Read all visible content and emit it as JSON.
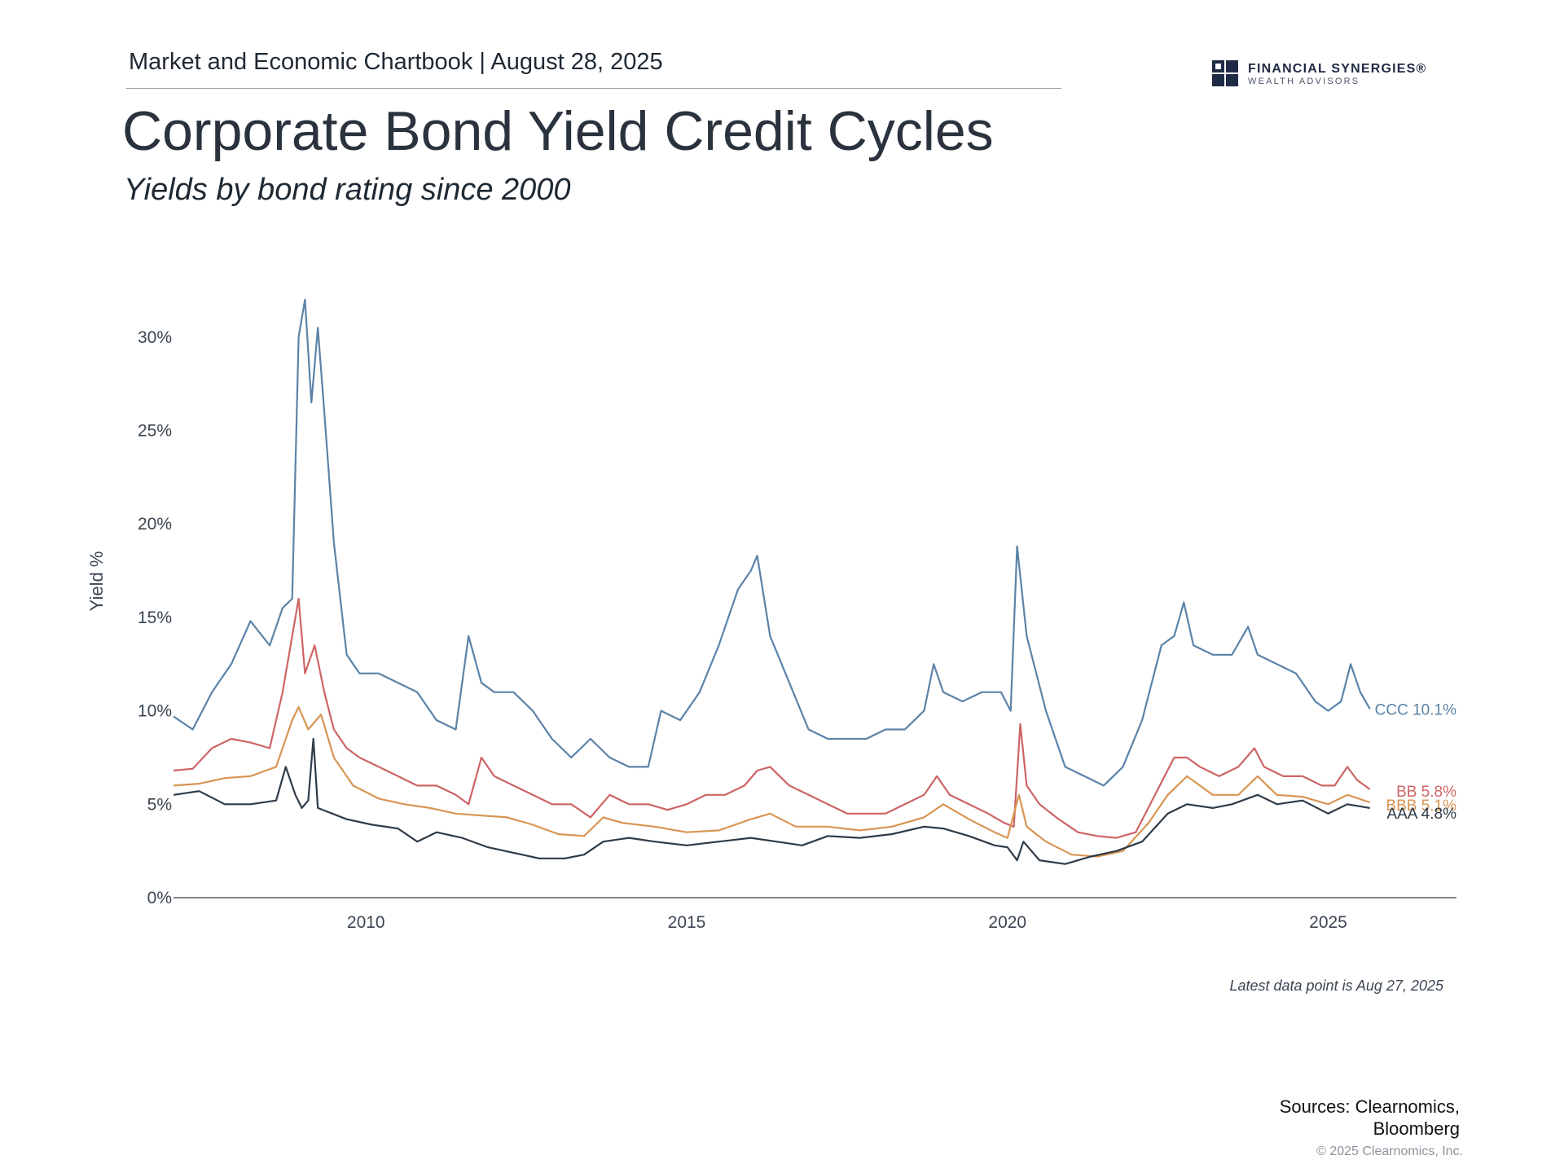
{
  "header": {
    "chartbook": "Market and Economic Chartbook | August 28, 2025"
  },
  "logo": {
    "line1": "FINANCIAL SYNERGIES®",
    "line2": "WEALTH ADVISORS",
    "colors": {
      "navy": "#1f2a44"
    }
  },
  "title": "Corporate Bond Yield Credit Cycles",
  "subtitle": "Yields by bond rating since 2000",
  "note": "Latest data point is Aug 27, 2025",
  "sources": {
    "line1": "Sources: Clearnomics,",
    "line2": "Bloomberg"
  },
  "copyright": "© 2025 Clearnomics, Inc.",
  "chart_data": {
    "type": "line",
    "ylabel": "Yield %",
    "xlabel": "",
    "ylim": [
      0,
      33
    ],
    "yticks": [
      0,
      5,
      10,
      15,
      20,
      25,
      30
    ],
    "ytick_labels": [
      "0%",
      "5%",
      "10%",
      "15%",
      "20%",
      "25%",
      "30%"
    ],
    "xlim": [
      2007.0,
      2027.0
    ],
    "xticks": [
      2010,
      2015,
      2020,
      2025
    ],
    "xtick_labels": [
      "2010",
      "2015",
      "2020",
      "2025"
    ],
    "grid": false,
    "legend": "end-of-line labels",
    "series": [
      {
        "name": "CCC",
        "end_label": "CCC 10.1%",
        "color": "#5b83a8",
        "x": [
          2007.0,
          2007.3,
          2007.6,
          2007.9,
          2008.2,
          2008.5,
          2008.7,
          2008.85,
          2008.95,
          2009.05,
          2009.15,
          2009.25,
          2009.35,
          2009.5,
          2009.7,
          2009.9,
          2010.2,
          2010.5,
          2010.8,
          2011.1,
          2011.4,
          2011.6,
          2011.8,
          2012.0,
          2012.3,
          2012.6,
          2012.9,
          2013.2,
          2013.5,
          2013.8,
          2014.1,
          2014.4,
          2014.6,
          2014.9,
          2015.2,
          2015.5,
          2015.8,
          2016.0,
          2016.1,
          2016.3,
          2016.6,
          2016.9,
          2017.2,
          2017.5,
          2017.8,
          2018.1,
          2018.4,
          2018.7,
          2018.85,
          2019.0,
          2019.3,
          2019.6,
          2019.9,
          2020.05,
          2020.15,
          2020.3,
          2020.6,
          2020.9,
          2021.2,
          2021.5,
          2021.8,
          2022.1,
          2022.4,
          2022.6,
          2022.75,
          2022.9,
          2023.2,
          2023.5,
          2023.75,
          2023.9,
          2024.2,
          2024.5,
          2024.8,
          2025.0,
          2025.2,
          2025.35,
          2025.5,
          2025.65
        ],
        "y": [
          9.7,
          9.0,
          11.0,
          12.5,
          14.8,
          13.5,
          15.5,
          16.0,
          30.0,
          32.0,
          26.5,
          30.5,
          26.0,
          19.0,
          13.0,
          12.0,
          12.0,
          11.5,
          11.0,
          9.5,
          9.0,
          14.0,
          11.5,
          11.0,
          11.0,
          10.0,
          8.5,
          7.5,
          8.5,
          7.5,
          7.0,
          7.0,
          10.0,
          9.5,
          11.0,
          13.5,
          16.5,
          17.5,
          18.3,
          14.0,
          11.5,
          9.0,
          8.5,
          8.5,
          8.5,
          9.0,
          9.0,
          10.0,
          12.5,
          11.0,
          10.5,
          11.0,
          11.0,
          10.0,
          18.8,
          14.0,
          10.0,
          7.0,
          6.5,
          6.0,
          7.0,
          9.5,
          13.5,
          14.0,
          15.8,
          13.5,
          13.0,
          13.0,
          14.5,
          13.0,
          12.5,
          12.0,
          10.5,
          10.0,
          10.5,
          12.5,
          11.0,
          10.1
        ]
      },
      {
        "name": "BB",
        "end_label": "BB 5.8%",
        "color": "#cd6466",
        "x": [
          2007.0,
          2007.3,
          2007.6,
          2007.9,
          2008.2,
          2008.5,
          2008.7,
          2008.85,
          2008.95,
          2009.05,
          2009.2,
          2009.35,
          2009.5,
          2009.7,
          2009.9,
          2010.2,
          2010.5,
          2010.8,
          2011.1,
          2011.4,
          2011.6,
          2011.8,
          2012.0,
          2012.3,
          2012.6,
          2012.9,
          2013.2,
          2013.5,
          2013.8,
          2014.1,
          2014.4,
          2014.7,
          2015.0,
          2015.3,
          2015.6,
          2015.9,
          2016.1,
          2016.3,
          2016.6,
          2016.9,
          2017.2,
          2017.5,
          2017.8,
          2018.1,
          2018.4,
          2018.7,
          2018.9,
          2019.1,
          2019.4,
          2019.7,
          2019.95,
          2020.1,
          2020.2,
          2020.3,
          2020.5,
          2020.8,
          2021.1,
          2021.4,
          2021.7,
          2022.0,
          2022.3,
          2022.6,
          2022.8,
          2023.0,
          2023.3,
          2023.6,
          2023.85,
          2024.0,
          2024.3,
          2024.6,
          2024.9,
          2025.1,
          2025.3,
          2025.45,
          2025.65
        ],
        "y": [
          6.8,
          6.9,
          8.0,
          8.5,
          8.3,
          8.0,
          11.0,
          14.0,
          16.0,
          12.0,
          13.5,
          11.0,
          9.0,
          8.0,
          7.5,
          7.0,
          6.5,
          6.0,
          6.0,
          5.5,
          5.0,
          7.5,
          6.5,
          6.0,
          5.5,
          5.0,
          5.0,
          4.3,
          5.5,
          5.0,
          5.0,
          4.7,
          5.0,
          5.5,
          5.5,
          6.0,
          6.8,
          7.0,
          6.0,
          5.5,
          5.0,
          4.5,
          4.5,
          4.5,
          5.0,
          5.5,
          6.5,
          5.5,
          5.0,
          4.5,
          4.0,
          3.8,
          9.3,
          6.0,
          5.0,
          4.2,
          3.5,
          3.3,
          3.2,
          3.5,
          5.5,
          7.5,
          7.5,
          7.0,
          6.5,
          7.0,
          8.0,
          7.0,
          6.5,
          6.5,
          6.0,
          6.0,
          7.0,
          6.3,
          5.8
        ]
      },
      {
        "name": "BBB",
        "end_label": "BBB 5.1%",
        "color": "#d89553",
        "x": [
          2007.0,
          2007.4,
          2007.8,
          2008.2,
          2008.6,
          2008.85,
          2008.95,
          2009.1,
          2009.3,
          2009.5,
          2009.8,
          2010.2,
          2010.6,
          2011.0,
          2011.4,
          2011.8,
          2012.2,
          2012.6,
          2013.0,
          2013.4,
          2013.7,
          2014.0,
          2014.5,
          2015.0,
          2015.5,
          2016.0,
          2016.3,
          2016.7,
          2017.2,
          2017.7,
          2018.2,
          2018.7,
          2019.0,
          2019.4,
          2019.8,
          2020.0,
          2020.18,
          2020.3,
          2020.6,
          2021.0,
          2021.4,
          2021.8,
          2022.2,
          2022.5,
          2022.8,
          2023.2,
          2023.6,
          2023.9,
          2024.2,
          2024.6,
          2025.0,
          2025.3,
          2025.65
        ],
        "y": [
          6.0,
          6.1,
          6.4,
          6.5,
          7.0,
          9.5,
          10.2,
          9.0,
          9.8,
          7.5,
          6.0,
          5.3,
          5.0,
          4.8,
          4.5,
          4.4,
          4.3,
          3.9,
          3.4,
          3.3,
          4.3,
          4.0,
          3.8,
          3.5,
          3.6,
          4.2,
          4.5,
          3.8,
          3.8,
          3.6,
          3.8,
          4.3,
          5.0,
          4.2,
          3.5,
          3.2,
          5.5,
          3.8,
          3.0,
          2.3,
          2.2,
          2.5,
          4.0,
          5.5,
          6.5,
          5.5,
          5.5,
          6.5,
          5.5,
          5.4,
          5.0,
          5.5,
          5.1
        ]
      },
      {
        "name": "AAA",
        "end_label": "AAA 4.8%",
        "color": "#2e3b48",
        "x": [
          2007.0,
          2007.4,
          2007.8,
          2008.2,
          2008.6,
          2008.75,
          2008.9,
          2009.0,
          2009.1,
          2009.18,
          2009.25,
          2009.4,
          2009.7,
          2010.1,
          2010.5,
          2010.8,
          2011.1,
          2011.5,
          2011.9,
          2012.3,
          2012.7,
          2013.1,
          2013.4,
          2013.7,
          2014.1,
          2014.5,
          2015.0,
          2015.5,
          2016.0,
          2016.4,
          2016.8,
          2017.2,
          2017.7,
          2018.2,
          2018.7,
          2019.0,
          2019.4,
          2019.8,
          2020.0,
          2020.15,
          2020.25,
          2020.5,
          2020.9,
          2021.3,
          2021.7,
          2022.1,
          2022.5,
          2022.8,
          2023.2,
          2023.5,
          2023.9,
          2024.2,
          2024.6,
          2025.0,
          2025.3,
          2025.65
        ],
        "y": [
          5.5,
          5.7,
          5.0,
          5.0,
          5.2,
          7.0,
          5.5,
          4.8,
          5.2,
          8.5,
          4.8,
          4.6,
          4.2,
          3.9,
          3.7,
          3.0,
          3.5,
          3.2,
          2.7,
          2.4,
          2.1,
          2.1,
          2.3,
          3.0,
          3.2,
          3.0,
          2.8,
          3.0,
          3.2,
          3.0,
          2.8,
          3.3,
          3.2,
          3.4,
          3.8,
          3.7,
          3.3,
          2.8,
          2.7,
          2.0,
          3.0,
          2.0,
          1.8,
          2.2,
          2.5,
          3.0,
          4.5,
          5.0,
          4.8,
          5.0,
          5.5,
          5.0,
          5.2,
          4.5,
          5.0,
          4.8
        ]
      }
    ]
  }
}
